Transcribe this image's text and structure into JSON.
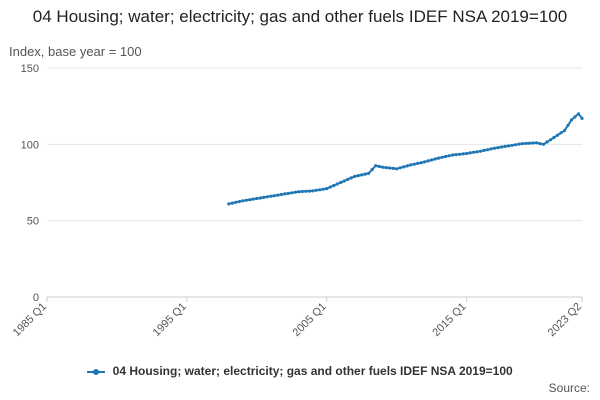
{
  "chart_data": {
    "type": "line",
    "title": "04 Housing; water; electricity; gas and other fuels IDEF NSA 2019=100",
    "subtitle": "Index, base year = 100",
    "ylabel": "Index, base year = 100",
    "xlabel": "",
    "ylim": [
      0,
      150
    ],
    "y_ticks": [
      0,
      50,
      100,
      150
    ],
    "x_ticks": [
      "1985 Q1",
      "1995 Q1",
      "2005 Q1",
      "2015 Q1",
      "2023 Q2"
    ],
    "grid": true,
    "series": [
      {
        "name": "04 Housing; water; electricity; gas and other fuels IDEF NSA 2019=100",
        "color": "#1f77b4",
        "t": [
          1998,
          1999,
          2000,
          2001,
          2002,
          2003,
          2004,
          2005,
          2006,
          2007,
          2008,
          2008.5,
          2009,
          2010,
          2011,
          2012,
          2013,
          2014,
          2015,
          2016,
          2017,
          2018,
          2019,
          2020,
          2020.5,
          2021,
          2022,
          2022.5,
          2023,
          2023.25
        ],
        "values": [
          61,
          63,
          64.5,
          66,
          67.5,
          69,
          69.5,
          71,
          75,
          79,
          81,
          86,
          85,
          84,
          86.5,
          88.5,
          91,
          93,
          94,
          95.5,
          97.5,
          99,
          100.5,
          101,
          100,
          103,
          109,
          116,
          120,
          117
        ]
      }
    ]
  },
  "legend": {
    "label": "04 Housing; water; electricity; gas and other fuels IDEF NSA 2019=100"
  },
  "source": {
    "label": "Source:"
  }
}
